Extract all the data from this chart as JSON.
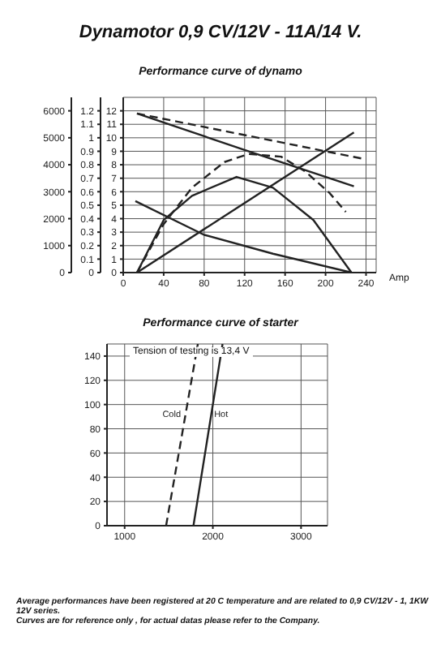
{
  "chart_data": [
    {
      "type": "line",
      "title": "Dynamotor 0,9 CV/12V - 11A/14 V.",
      "subtitle": "Performance curve of dynamo",
      "xlabel": "Amp",
      "xlim": [
        0,
        250
      ],
      "xticks": [
        0,
        40,
        80,
        120,
        160,
        200,
        240
      ],
      "ylim": [
        0,
        13
      ],
      "yticks": [
        0,
        1,
        2,
        3,
        4,
        5,
        6,
        7,
        8,
        9,
        10,
        11,
        12
      ],
      "y2lim": [
        0,
        1.3
      ],
      "y2ticks": [
        0,
        0.1,
        0.2,
        0.3,
        0.4,
        0.5,
        0.6,
        0.7,
        0.8,
        0.9,
        1,
        1.1,
        1.2
      ],
      "y3lim": [
        0,
        6500
      ],
      "y3ticks": [
        0,
        1000,
        2000,
        3000,
        4000,
        5000,
        6000
      ],
      "grid": true,
      "marker": "none",
      "series": [
        {
          "color": "#222222",
          "line_style": "solid",
          "x": [
            13.6,
            120,
            228
          ],
          "values": [
            11.8,
            9.1,
            6.4
          ]
        },
        {
          "color": "#222222",
          "line_style": "dashed",
          "x": [
            13.6,
            240
          ],
          "values": [
            11.8,
            8.4
          ]
        },
        {
          "color": "#222222",
          "line_style": "solid",
          "x": [
            13.6,
            40,
            68,
            112,
            148,
            188,
            225.6
          ],
          "values": [
            0,
            3.9,
            5.7,
            7.1,
            6.3,
            3.9,
            0
          ]
        },
        {
          "color": "#222222",
          "line_style": "dashed",
          "x": [
            13.6,
            40,
            68,
            100,
            124,
            156,
            180,
            204,
            220
          ],
          "values": [
            0,
            3.6,
            6.3,
            8.2,
            8.8,
            8.6,
            7.5,
            5.9,
            4.5
          ]
        },
        {
          "color": "#222222",
          "line_style": "solid",
          "x": [
            13.6,
            228
          ],
          "values": [
            0,
            10.4
          ]
        },
        {
          "color": "#222222",
          "line_style": "solid",
          "x": [
            12,
            80,
            148,
            225.6
          ],
          "values": [
            5.3,
            2.8,
            1.4,
            0
          ]
        }
      ]
    },
    {
      "type": "line",
      "title": "Performance curve of starter",
      "xlim": [
        800,
        3300
      ],
      "xticks": [
        1000,
        2000,
        3000
      ],
      "ylim": [
        0,
        150
      ],
      "yticks": [
        0,
        20,
        40,
        60,
        80,
        100,
        120,
        140
      ],
      "grid": true,
      "marker": "none",
      "annotations": [
        "Tension of testing  is 13,4 V",
        "Average performances have been registered at 20 C temperature and are related to 0,9 CV/12V - 1, 1KW 12V series.",
        "Curves are for reference only , for actual datas please refer to the Company."
      ],
      "series": [
        {
          "name": "Cold",
          "color": "#222222",
          "line_style": "dashed",
          "x": [
            1470,
            1830
          ],
          "values": [
            0,
            150
          ]
        },
        {
          "name": "Hot",
          "color": "#222222",
          "line_style": "solid",
          "x": [
            1780,
            2110
          ],
          "values": [
            0,
            150
          ]
        }
      ]
    }
  ]
}
